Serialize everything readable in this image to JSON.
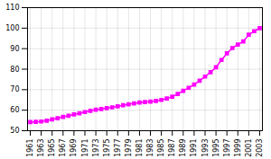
{
  "chart_data": {
    "type": "line",
    "x": [
      1961,
      1962,
      1963,
      1964,
      1965,
      1966,
      1967,
      1968,
      1969,
      1970,
      1971,
      1972,
      1973,
      1974,
      1975,
      1976,
      1977,
      1978,
      1979,
      1980,
      1981,
      1982,
      1983,
      1984,
      1985,
      1986,
      1987,
      1988,
      1989,
      1990,
      1991,
      1992,
      1993,
      1994,
      1995,
      1996,
      1997,
      1998,
      1999,
      2000,
      2001,
      2002,
      2003
    ],
    "values": [
      54.2,
      54.3,
      54.5,
      54.9,
      55.5,
      56.1,
      56.7,
      57.3,
      57.9,
      58.5,
      59.1,
      59.7,
      60.2,
      60.6,
      61.0,
      61.4,
      61.9,
      62.4,
      62.9,
      63.3,
      63.7,
      64.0,
      64.2,
      64.5,
      65.0,
      65.7,
      66.6,
      67.9,
      69.4,
      70.9,
      72.5,
      74.4,
      76.4,
      78.5,
      80.9,
      84.5,
      87.7,
      90.3,
      92.0,
      93.5,
      96.8,
      98.5,
      100.0
    ],
    "color": "#ff00ff",
    "marker": "square",
    "xlim": [
      1960.5,
      2003.5
    ],
    "xticks": [
      1961,
      1963,
      1965,
      1967,
      1969,
      1971,
      1973,
      1975,
      1977,
      1979,
      1981,
      1983,
      1985,
      1987,
      1989,
      1991,
      1993,
      1995,
      1997,
      1999,
      2001,
      2003
    ],
    "ylim": [
      50,
      110
    ],
    "yticks": [
      50,
      60,
      70,
      80,
      90,
      100,
      110
    ],
    "grid": true
  }
}
